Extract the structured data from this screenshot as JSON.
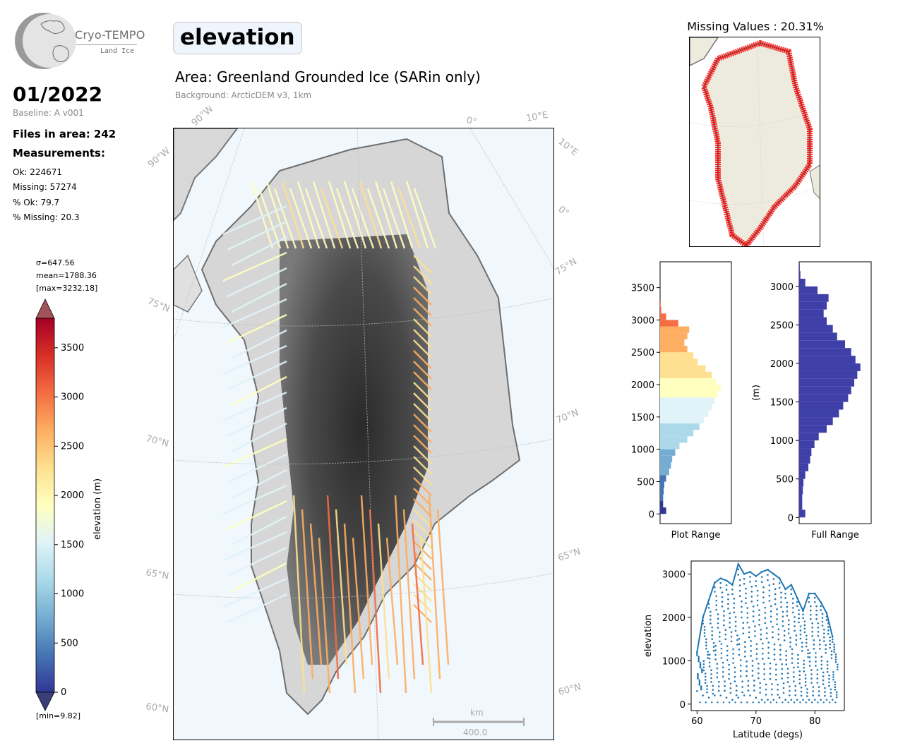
{
  "header": {
    "logo_name": "Cryo-TEMPO",
    "logo_sub": "Land Ice",
    "date": "01/2022",
    "baseline": "Baseline: A v001",
    "files_in_area": "Files in area: 242",
    "measurements_label": "Measurements:",
    "stats": [
      "Ok: 224671",
      "Missing: 57274",
      "% Ok: 79.7",
      "% Missing: 20.3"
    ]
  },
  "title": {
    "parameter": "elevation",
    "area": "Area: Greenland Grounded Ice (SARin only)",
    "background": "Background: ArcticDEM v3, 1km"
  },
  "colorbar": {
    "sigma": "σ=647.56",
    "mean": "mean=1788.36",
    "max": "[max=3232.18]",
    "min": "[min=9.82]",
    "label": "elevation (m)",
    "ticks": [
      "0",
      "500",
      "1000",
      "1500",
      "2000",
      "2500",
      "3000",
      "3500"
    ],
    "colors": [
      "#313695",
      "#4575b4",
      "#74add1",
      "#abd9e9",
      "#e0f3f8",
      "#ffffbf",
      "#fee090",
      "#fdae61",
      "#f46d43",
      "#d73027",
      "#a50026"
    ]
  },
  "map": {
    "graticule_labels": [
      "90°W",
      "90°W",
      "0°",
      "10°E",
      "10°E",
      "0°",
      "75°N",
      "75°N",
      "70°N",
      "70°N",
      "65°N",
      "65°N",
      "60°N",
      "60°N"
    ],
    "scalebar_unit": "km",
    "scalebar_value": "400.0",
    "missing_title": "Missing Values : 20.31%"
  },
  "chart_data": [
    {
      "type": "bar",
      "orientation": "horizontal",
      "xlabel": "Plot Range",
      "ylabel": "",
      "ylim": [
        -150,
        3900
      ],
      "yticks": [
        0,
        500,
        1000,
        1500,
        2000,
        2500,
        3000,
        3500
      ],
      "bins": [
        0,
        100,
        200,
        300,
        400,
        500,
        600,
        700,
        800,
        900,
        1000,
        1100,
        1200,
        1300,
        1400,
        1500,
        1600,
        1700,
        1800,
        1900,
        2000,
        2100,
        2200,
        2300,
        2400,
        2500,
        2600,
        2700,
        2800,
        2900,
        3000,
        3100,
        3200
      ],
      "values": [
        0.1,
        0.05,
        0.05,
        0.06,
        0.07,
        0.1,
        0.15,
        0.18,
        0.2,
        0.25,
        0.32,
        0.45,
        0.55,
        0.65,
        0.72,
        0.8,
        0.85,
        0.9,
        0.95,
        1.0,
        0.92,
        0.85,
        0.75,
        0.62,
        0.55,
        0.45,
        0.4,
        0.45,
        0.48,
        0.3,
        0.1,
        0.02,
        0.01
      ]
    },
    {
      "type": "bar",
      "orientation": "horizontal",
      "xlabel": "Full Range",
      "ylabel": "(m)",
      "ylim": [
        -80,
        3320
      ],
      "yticks": [
        0,
        500,
        1000,
        1500,
        2000,
        2500,
        3000
      ],
      "color": "#3f3fa8",
      "bins": [
        0,
        100,
        200,
        300,
        400,
        500,
        600,
        700,
        800,
        900,
        1000,
        1100,
        1200,
        1300,
        1400,
        1500,
        1600,
        1700,
        1800,
        1900,
        2000,
        2100,
        2200,
        2300,
        2400,
        2500,
        2600,
        2700,
        2800,
        2900,
        3000,
        3100,
        3200
      ],
      "values": [
        0.1,
        0.05,
        0.05,
        0.06,
        0.07,
        0.1,
        0.15,
        0.18,
        0.2,
        0.25,
        0.32,
        0.45,
        0.55,
        0.65,
        0.72,
        0.8,
        0.85,
        0.9,
        0.95,
        1.0,
        0.92,
        0.85,
        0.75,
        0.62,
        0.55,
        0.45,
        0.4,
        0.45,
        0.48,
        0.3,
        0.1,
        0.02,
        0.01
      ]
    },
    {
      "type": "scatter",
      "xlabel": "Latitude (degs)",
      "ylabel": "elevation",
      "xlim": [
        59,
        85
      ],
      "ylim": [
        -150,
        3300
      ],
      "xticks": [
        60,
        70,
        80
      ],
      "yticks": [
        0,
        1000,
        2000,
        3000
      ],
      "color": "#1f77b4",
      "envelope": {
        "lat": [
          60,
          61,
          62,
          63,
          64,
          65,
          66,
          67,
          68,
          69,
          70,
          71,
          72,
          73,
          74,
          75,
          76,
          77,
          78,
          79,
          80,
          81,
          82,
          83
        ],
        "upper": [
          1200,
          2000,
          2400,
          2800,
          2900,
          2850,
          2750,
          3230,
          3000,
          3050,
          2950,
          3050,
          3100,
          3000,
          2900,
          2650,
          2750,
          2450,
          2150,
          2550,
          2550,
          2350,
          2100,
          1550
        ],
        "lower": [
          300,
          200,
          150,
          200,
          200,
          150,
          100,
          150,
          200,
          200,
          150,
          100,
          100,
          100,
          150,
          100,
          100,
          100,
          100,
          100,
          100,
          100,
          100,
          100
        ]
      }
    }
  ]
}
